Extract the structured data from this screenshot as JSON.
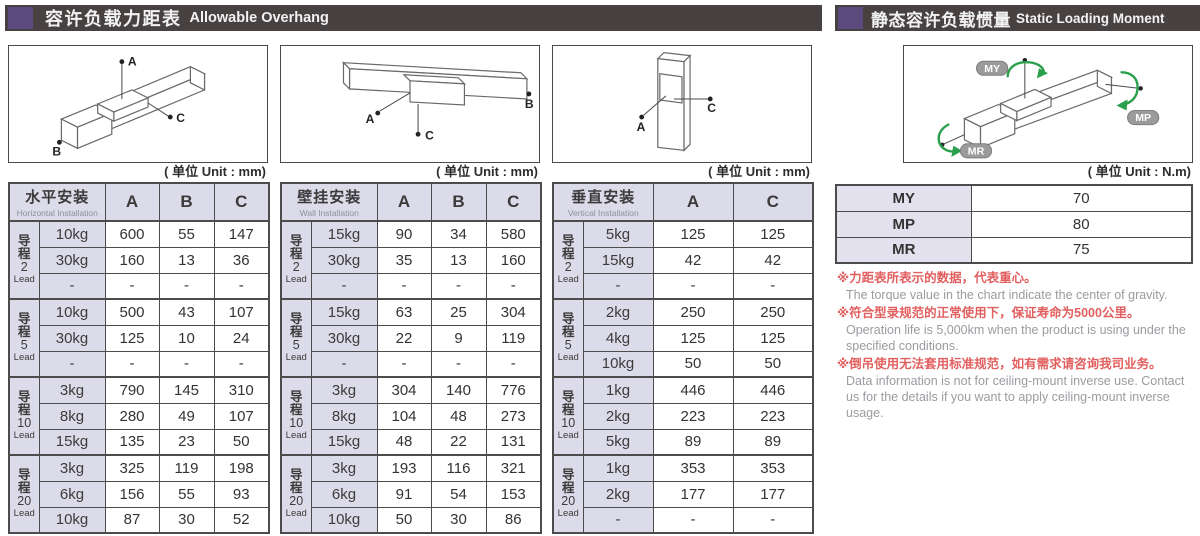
{
  "left_header": {
    "title_zh": "容许负载力距表",
    "title_en": "Allowable Overhang"
  },
  "right_header": {
    "title_zh": "静态容许负载惯量",
    "title_en": "Static Loading Moment"
  },
  "unit_mm": "( 单位 Unit : mm)",
  "unit_nm": "( 单位 Unit : N.m)",
  "colors": {
    "header_bar_bg": "#474241",
    "accent_purple": "#5b4a7d",
    "table_header_bg": "#dcdbe9",
    "note_red": "#e25f5f",
    "note_gray": "#9b9ba1",
    "arrow_green": "#2aa04d"
  },
  "overhang_tables": [
    {
      "title_zh": "水平安装",
      "title_en": "Horizontal Installation",
      "columns": [
        "A",
        "B",
        "C"
      ],
      "groups": [
        {
          "lead_zh": "导程",
          "lead_num": "2",
          "lead_en": "Lead",
          "rows": [
            {
              "load": "10kg",
              "values": [
                "600",
                "55",
                "147"
              ]
            },
            {
              "load": "30kg",
              "values": [
                "160",
                "13",
                "36"
              ]
            },
            {
              "load": "-",
              "values": [
                "-",
                "-",
                "-"
              ]
            }
          ]
        },
        {
          "lead_zh": "导程",
          "lead_num": "5",
          "lead_en": "Lead",
          "rows": [
            {
              "load": "10kg",
              "values": [
                "500",
                "43",
                "107"
              ]
            },
            {
              "load": "30kg",
              "values": [
                "125",
                "10",
                "24"
              ]
            },
            {
              "load": "-",
              "values": [
                "-",
                "-",
                "-"
              ]
            }
          ]
        },
        {
          "lead_zh": "导程",
          "lead_num": "10",
          "lead_en": "Lead",
          "rows": [
            {
              "load": "3kg",
              "values": [
                "790",
                "145",
                "310"
              ]
            },
            {
              "load": "8kg",
              "values": [
                "280",
                "49",
                "107"
              ]
            },
            {
              "load": "15kg",
              "values": [
                "135",
                "23",
                "50"
              ]
            }
          ]
        },
        {
          "lead_zh": "导程",
          "lead_num": "20",
          "lead_en": "Lead",
          "rows": [
            {
              "load": "3kg",
              "values": [
                "325",
                "119",
                "198"
              ]
            },
            {
              "load": "6kg",
              "values": [
                "156",
                "55",
                "93"
              ]
            },
            {
              "load": "10kg",
              "values": [
                "87",
                "30",
                "52"
              ]
            }
          ]
        }
      ]
    },
    {
      "title_zh": "壁挂安装",
      "title_en": "Wall Installation",
      "columns": [
        "A",
        "B",
        "C"
      ],
      "groups": [
        {
          "lead_zh": "导程",
          "lead_num": "2",
          "lead_en": "Lead",
          "rows": [
            {
              "load": "15kg",
              "values": [
                "90",
                "34",
                "580"
              ]
            },
            {
              "load": "30kg",
              "values": [
                "35",
                "13",
                "160"
              ]
            },
            {
              "load": "-",
              "values": [
                "-",
                "-",
                "-"
              ]
            }
          ]
        },
        {
          "lead_zh": "导程",
          "lead_num": "5",
          "lead_en": "Lead",
          "rows": [
            {
              "load": "15kg",
              "values": [
                "63",
                "25",
                "304"
              ]
            },
            {
              "load": "30kg",
              "values": [
                "22",
                "9",
                "119"
              ]
            },
            {
              "load": "-",
              "values": [
                "-",
                "-",
                "-"
              ]
            }
          ]
        },
        {
          "lead_zh": "导程",
          "lead_num": "10",
          "lead_en": "Lead",
          "rows": [
            {
              "load": "3kg",
              "values": [
                "304",
                "140",
                "776"
              ]
            },
            {
              "load": "8kg",
              "values": [
                "104",
                "48",
                "273"
              ]
            },
            {
              "load": "15kg",
              "values": [
                "48",
                "22",
                "131"
              ]
            }
          ]
        },
        {
          "lead_zh": "导程",
          "lead_num": "20",
          "lead_en": "Lead",
          "rows": [
            {
              "load": "3kg",
              "values": [
                "193",
                "116",
                "321"
              ]
            },
            {
              "load": "6kg",
              "values": [
                "91",
                "54",
                "153"
              ]
            },
            {
              "load": "10kg",
              "values": [
                "50",
                "30",
                "86"
              ]
            }
          ]
        }
      ]
    },
    {
      "title_zh": "垂直安装",
      "title_en": "Vertical Installation",
      "columns": [
        "A",
        "C"
      ],
      "groups": [
        {
          "lead_zh": "导程",
          "lead_num": "2",
          "lead_en": "Lead",
          "rows": [
            {
              "load": "5kg",
              "values": [
                "125",
                "125"
              ]
            },
            {
              "load": "15kg",
              "values": [
                "42",
                "42"
              ]
            },
            {
              "load": "-",
              "values": [
                "-",
                "-"
              ]
            }
          ]
        },
        {
          "lead_zh": "导程",
          "lead_num": "5",
          "lead_en": "Lead",
          "rows": [
            {
              "load": "2kg",
              "values": [
                "250",
                "250"
              ]
            },
            {
              "load": "4kg",
              "values": [
                "125",
                "125"
              ]
            },
            {
              "load": "10kg",
              "values": [
                "50",
                "50"
              ]
            }
          ]
        },
        {
          "lead_zh": "导程",
          "lead_num": "10",
          "lead_en": "Lead",
          "rows": [
            {
              "load": "1kg",
              "values": [
                "446",
                "446"
              ]
            },
            {
              "load": "2kg",
              "values": [
                "223",
                "223"
              ]
            },
            {
              "load": "5kg",
              "values": [
                "89",
                "89"
              ]
            }
          ]
        },
        {
          "lead_zh": "导程",
          "lead_num": "20",
          "lead_en": "Lead",
          "rows": [
            {
              "load": "1kg",
              "values": [
                "353",
                "353"
              ]
            },
            {
              "load": "2kg",
              "values": [
                "177",
                "177"
              ]
            },
            {
              "load": "-",
              "values": [
                "-",
                "-"
              ]
            }
          ]
        }
      ]
    }
  ],
  "diagram_labels": {
    "horizontal": {
      "a": "A",
      "b": "B",
      "c": "C"
    },
    "wall": {
      "a": "A",
      "b": "B",
      "c": "C"
    },
    "vertical": {
      "a": "A",
      "c": "C"
    },
    "moment": {
      "my": "MY",
      "mp": "MP",
      "mr": "MR"
    }
  },
  "moment_table": {
    "rows": [
      {
        "label": "MY",
        "value": "70"
      },
      {
        "label": "MP",
        "value": "80"
      },
      {
        "label": "MR",
        "value": "75"
      }
    ]
  },
  "notes": [
    {
      "zh": "※力距表所表示的数据，代表重心。",
      "en": "The torque value in the chart indicate the center of gravity."
    },
    {
      "zh": "※符合型录规范的正常使用下，保证寿命为5000公里。",
      "en": "Operation life is 5,000km when the product is using under the specified conditions."
    },
    {
      "zh": "※倒吊使用无法套用标准规范，如有需求请咨询我司业务。",
      "en": "Data information is not for ceiling-mount inverse use. Contact us for the details if you want to apply ceiling-mount inverse usage."
    }
  ]
}
